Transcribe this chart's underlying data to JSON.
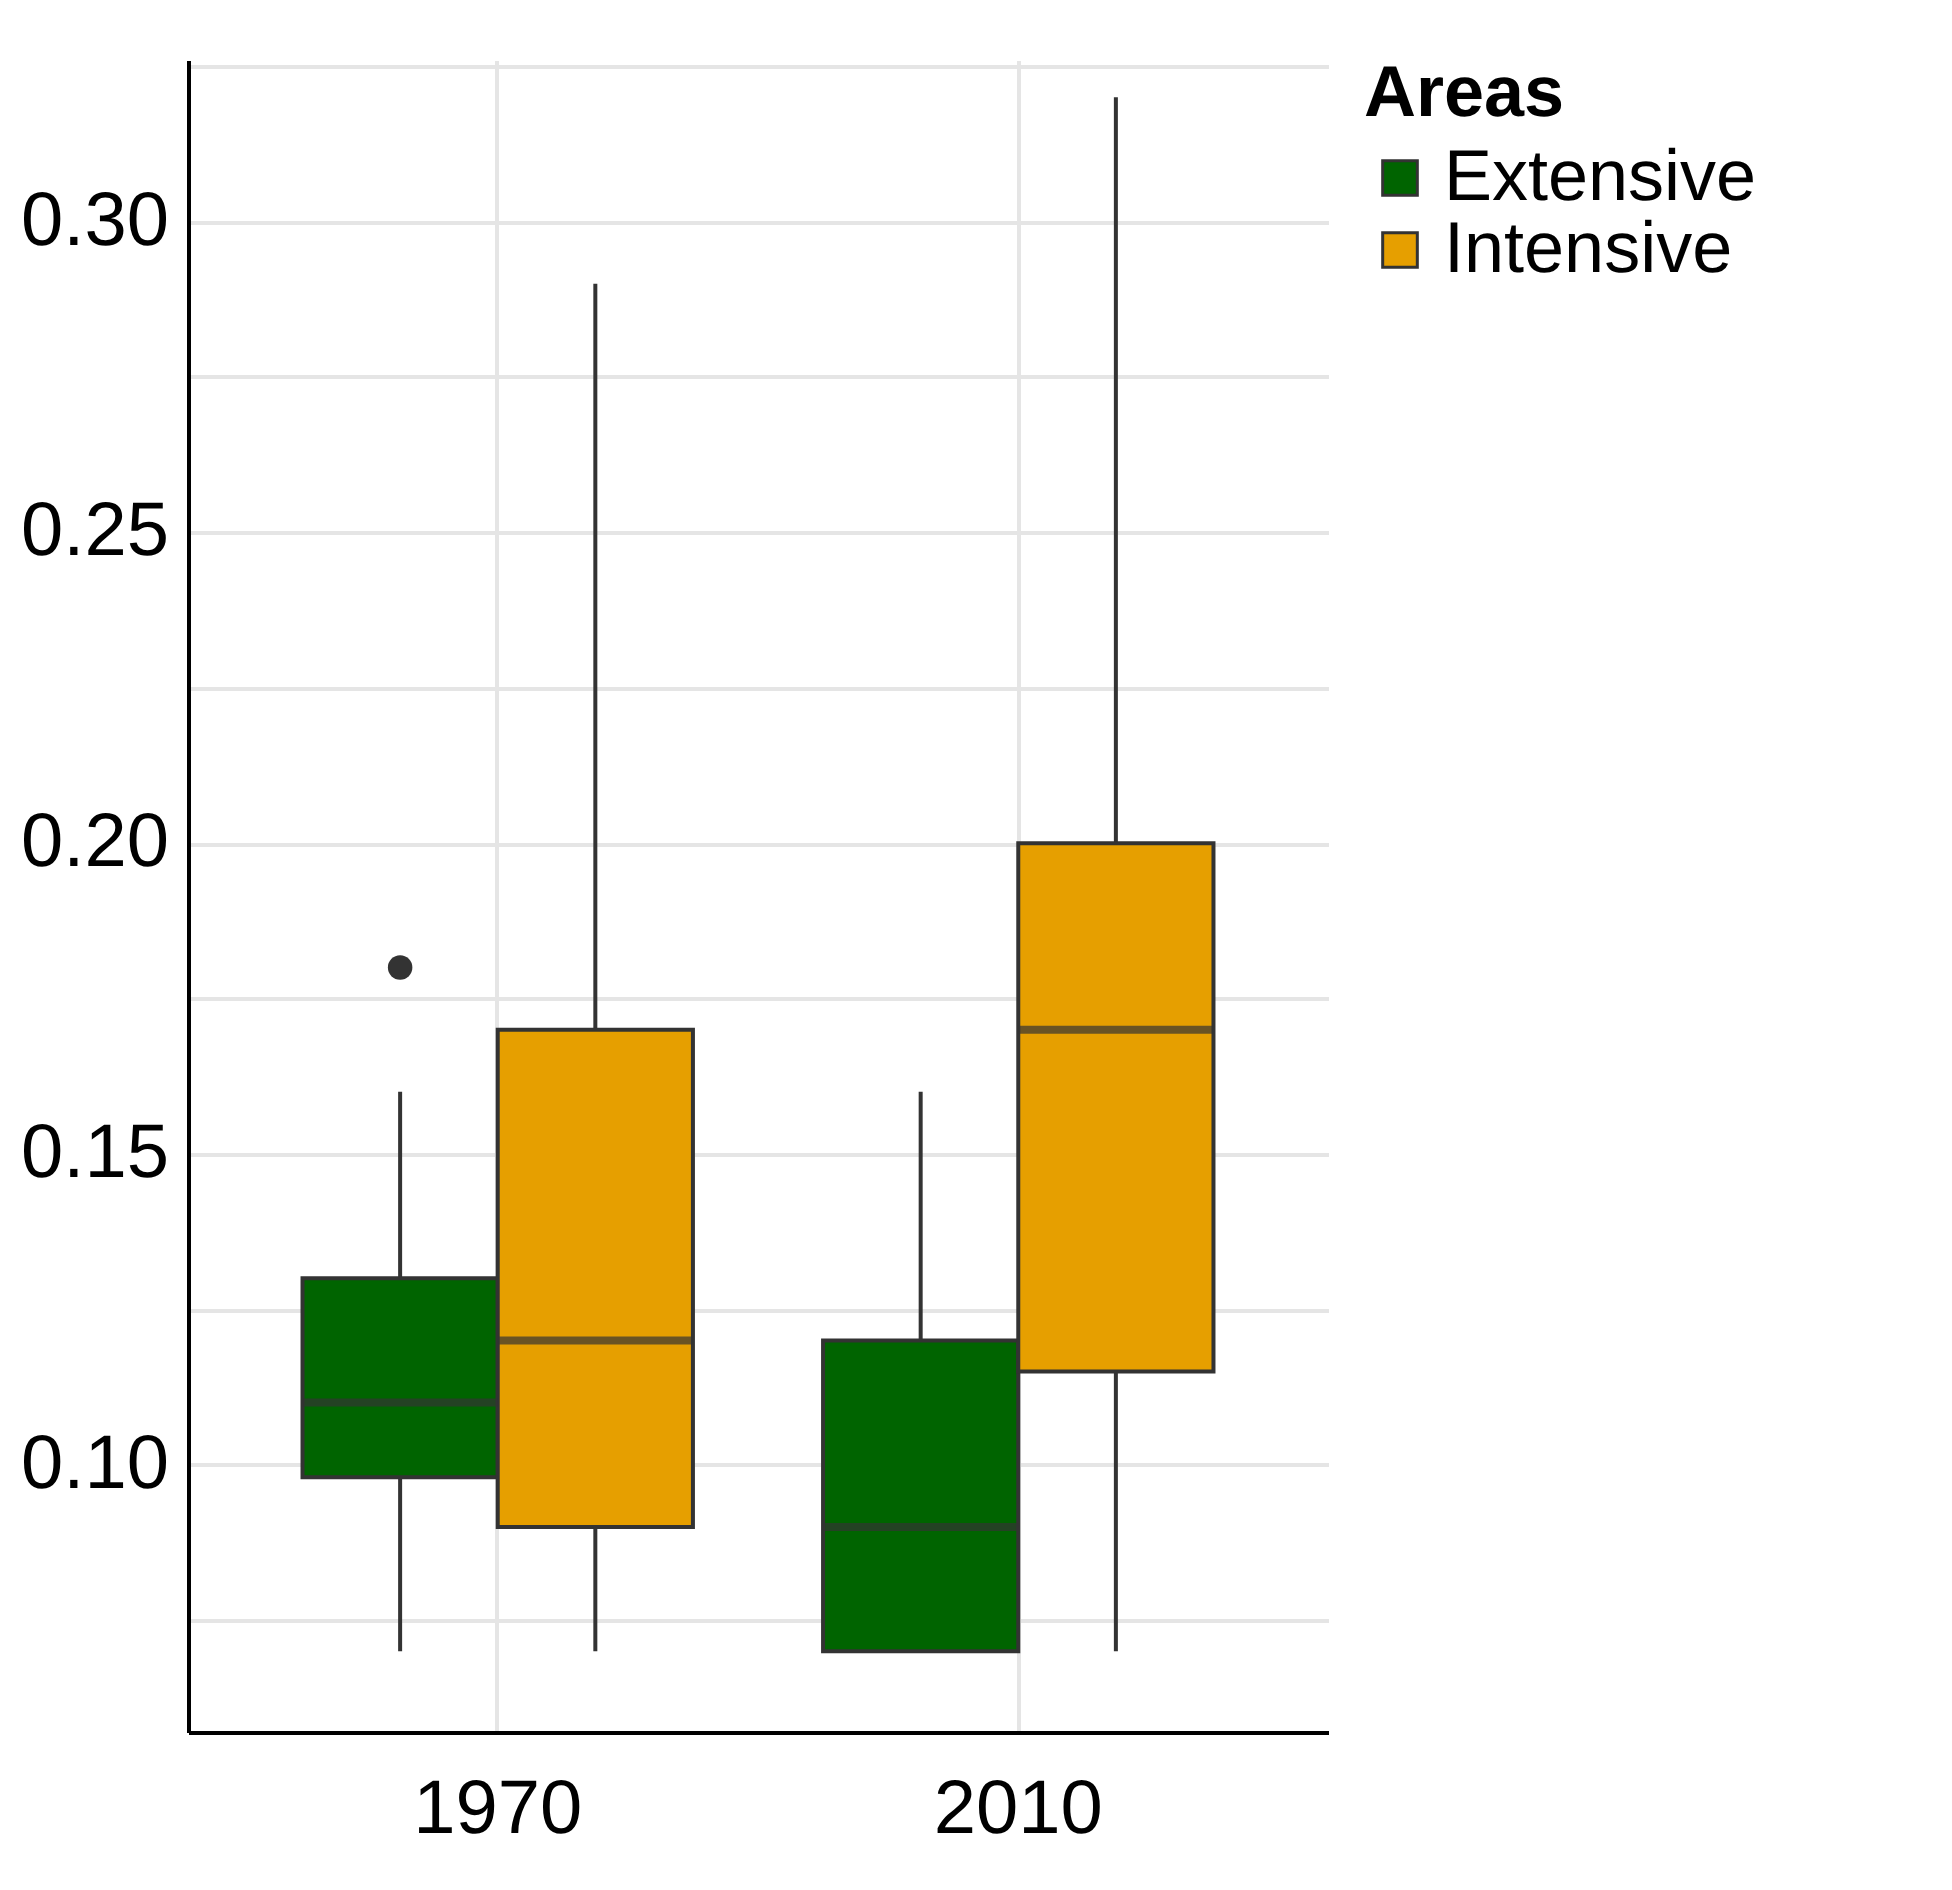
{
  "chart_data": {
    "type": "box",
    "categories": [
      "1970",
      "2010"
    ],
    "series": [
      {
        "name": "Extensive",
        "color": "#006400",
        "boxes": [
          {
            "low": 0.07,
            "q1": 0.098,
            "median": 0.11,
            "q3": 0.13,
            "high": 0.16,
            "outliers": [
              0.18
            ]
          },
          {
            "low": 0.07,
            "q1": 0.07,
            "median": 0.09,
            "q3": 0.12,
            "high": 0.16
          }
        ]
      },
      {
        "name": "Intensive",
        "color": "#e69f00",
        "boxes": [
          {
            "low": 0.07,
            "q1": 0.09,
            "median": 0.12,
            "q3": 0.17,
            "high": 0.29
          },
          {
            "low": 0.07,
            "q1": 0.115,
            "median": 0.17,
            "q3": 0.2,
            "high": 0.32
          }
        ]
      }
    ],
    "ylim": [
      0.057,
      0.326
    ],
    "yticks": [
      {
        "value": 0.075,
        "label": null
      },
      {
        "value": 0.1,
        "label": "0.10"
      },
      {
        "value": 0.125,
        "label": null
      },
      0.15,
      {
        "value": 0.175,
        "label": null
      },
      {
        "value": 0.2,
        "label": "0.20"
      },
      {
        "value": 0.225,
        "label": null
      },
      0.25,
      {
        "value": 0.275,
        "label": null
      },
      {
        "value": 0.3,
        "label": "0.30"
      },
      {
        "value": 0.325,
        "label": null
      }
    ],
    "grid": true,
    "legend": "right",
    "legend_title": "Areas"
  }
}
